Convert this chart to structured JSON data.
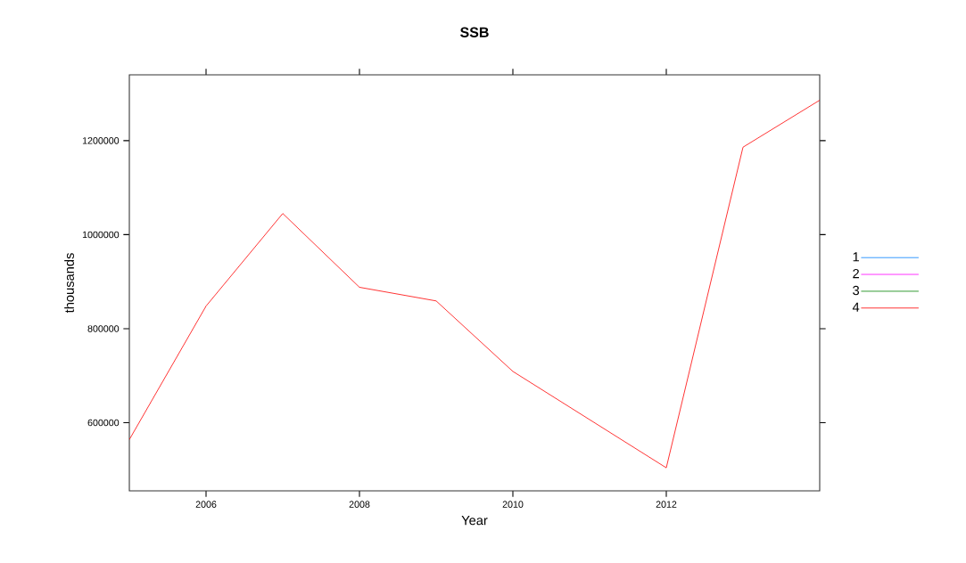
{
  "chart_data": {
    "type": "line",
    "title": "SSB",
    "xlabel": "Year",
    "ylabel": "thousands",
    "x": [
      2005,
      2006,
      2007,
      2008,
      2009,
      2010,
      2012,
      2013,
      2014
    ],
    "series": [
      {
        "name": "1",
        "color": "#0080ff",
        "values": [
          null,
          null,
          null,
          null,
          null,
          null,
          null,
          null,
          null
        ]
      },
      {
        "name": "2",
        "color": "#ff00ff",
        "values": [
          null,
          null,
          null,
          null,
          null,
          null,
          null,
          null,
          null
        ]
      },
      {
        "name": "3",
        "color": "#008000",
        "values": [
          null,
          null,
          null,
          null,
          null,
          null,
          null,
          null,
          null
        ]
      },
      {
        "name": "4",
        "color": "#ff0000",
        "values": [
          564000,
          848000,
          1045000,
          888000,
          859000,
          709000,
          504000,
          1186000,
          1286000
        ]
      }
    ],
    "xlim": [
      2005,
      2014
    ],
    "ylim": [
      455000,
      1340000
    ],
    "xticks": [
      2006,
      2008,
      2010,
      2012
    ],
    "yticks": [
      600000,
      800000,
      1000000,
      1200000
    ],
    "legend": "right",
    "line_style": "solid",
    "marker": "none"
  }
}
